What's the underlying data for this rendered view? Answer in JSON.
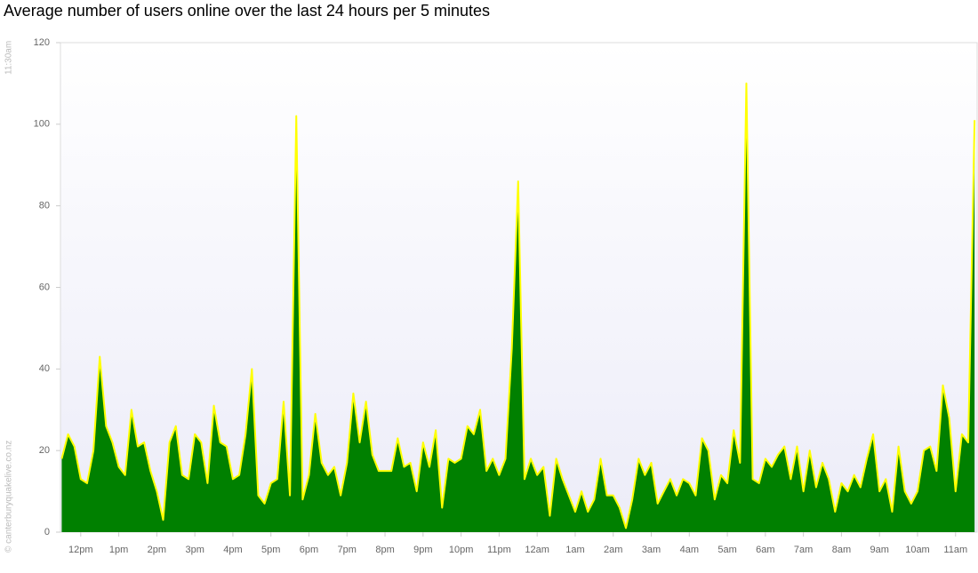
{
  "chart_data": {
    "type": "area",
    "title": "Average number of users online over the last 24 hours per 5 minutes",
    "annotations": [
      "11:30am",
      "© canterburyquakelive.co.nz"
    ],
    "fill_color": "#008000",
    "line_color": "#ffff00",
    "grid": false,
    "xlim": [
      -32,
      1414
    ],
    "xticks": [
      {
        "value": 0,
        "label": "12pm"
      },
      {
        "value": 60,
        "label": "1pm"
      },
      {
        "value": 120,
        "label": "2pm"
      },
      {
        "value": 180,
        "label": "3pm"
      },
      {
        "value": 240,
        "label": "4pm"
      },
      {
        "value": 300,
        "label": "5pm"
      },
      {
        "value": 360,
        "label": "6pm"
      },
      {
        "value": 420,
        "label": "7pm"
      },
      {
        "value": 480,
        "label": "8pm"
      },
      {
        "value": 540,
        "label": "9pm"
      },
      {
        "value": 600,
        "label": "10pm"
      },
      {
        "value": 660,
        "label": "11pm"
      },
      {
        "value": 720,
        "label": "12am"
      },
      {
        "value": 780,
        "label": "1am"
      },
      {
        "value": 840,
        "label": "2am"
      },
      {
        "value": 900,
        "label": "3am"
      },
      {
        "value": 960,
        "label": "4am"
      },
      {
        "value": 1020,
        "label": "5am"
      },
      {
        "value": 1080,
        "label": "6am"
      },
      {
        "value": 1140,
        "label": "7am"
      },
      {
        "value": 1200,
        "label": "8am"
      },
      {
        "value": 1260,
        "label": "9am"
      },
      {
        "value": 1320,
        "label": "10am"
      },
      {
        "value": 1380,
        "label": "11am"
      }
    ],
    "ylim": [
      0,
      120
    ],
    "yticks": [
      0,
      20,
      40,
      60,
      80,
      100,
      120
    ],
    "x": [
      -30,
      -20,
      -10,
      0,
      10,
      20,
      30,
      40,
      50,
      60,
      70,
      80,
      90,
      100,
      110,
      120,
      130,
      140,
      150,
      160,
      170,
      180,
      190,
      200,
      210,
      220,
      230,
      240,
      250,
      260,
      270,
      280,
      290,
      300,
      310,
      320,
      330,
      340,
      350,
      360,
      370,
      380,
      390,
      400,
      410,
      420,
      430,
      440,
      450,
      460,
      470,
      480,
      490,
      500,
      510,
      520,
      530,
      540,
      550,
      560,
      570,
      580,
      590,
      600,
      610,
      620,
      630,
      640,
      650,
      660,
      670,
      680,
      690,
      700,
      710,
      720,
      730,
      740,
      750,
      760,
      770,
      780,
      790,
      800,
      810,
      820,
      830,
      840,
      850,
      860,
      870,
      880,
      890,
      900,
      910,
      920,
      930,
      940,
      950,
      960,
      970,
      980,
      990,
      1000,
      1010,
      1020,
      1030,
      1040,
      1050,
      1060,
      1070,
      1080,
      1090,
      1100,
      1110,
      1120,
      1130,
      1140,
      1150,
      1160,
      1170,
      1180,
      1190,
      1200,
      1210,
      1220,
      1230,
      1240,
      1250,
      1260,
      1270,
      1280,
      1290,
      1300,
      1310,
      1320,
      1330,
      1340,
      1350,
      1360,
      1370,
      1380,
      1390,
      1400,
      1410
    ],
    "values": [
      18,
      24,
      21,
      13,
      12,
      20,
      43,
      26,
      22,
      16,
      14,
      30,
      21,
      22,
      15,
      10,
      3,
      22,
      26,
      14,
      13,
      24,
      22,
      12,
      31,
      22,
      21,
      13,
      14,
      24,
      40,
      9,
      7,
      12,
      13,
      32,
      9,
      102,
      8,
      14,
      29,
      17,
      14,
      16,
      9,
      17,
      34,
      22,
      32,
      19,
      15,
      15,
      15,
      23,
      16,
      17,
      10,
      22,
      16,
      25,
      6,
      18,
      17,
      18,
      26,
      24,
      30,
      15,
      18,
      14,
      18,
      45,
      86,
      13,
      18,
      14,
      16,
      4,
      18,
      13,
      9,
      5,
      10,
      5,
      8,
      18,
      9,
      9,
      6,
      1,
      8,
      18,
      14,
      17,
      7,
      10,
      13,
      9,
      13,
      12,
      9,
      23,
      20,
      8,
      14,
      12,
      25,
      17,
      110,
      13,
      12,
      18,
      16,
      19,
      21,
      13,
      21,
      10,
      20,
      11,
      17,
      13,
      5,
      12,
      10,
      14,
      11,
      18,
      24,
      10,
      13,
      5,
      21,
      10,
      7,
      10,
      20,
      21,
      15,
      36,
      28,
      10,
      24,
      22,
      101
    ]
  }
}
